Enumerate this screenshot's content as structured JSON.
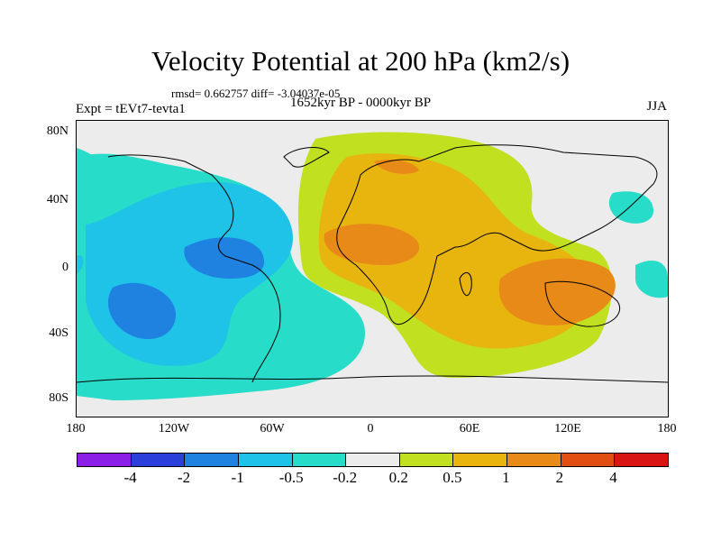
{
  "title": "Velocity Potential at 200 hPa (km2/s)",
  "stats": "rmsd= 0.662757 diff= -3.04037e-05",
  "expt": "Expt = tEVt7-tevta1",
  "period": "1652kyr BP - 0000kyr BP",
  "season": "JJA",
  "lat_labels": [
    "80N",
    "40N",
    "0",
    "40S",
    "80S"
  ],
  "lon_labels": [
    "180",
    "120W",
    "60W",
    "0",
    "60E",
    "120E",
    "180"
  ],
  "colorbar": {
    "colors": [
      "#8b1fe6",
      "#2a3fd9",
      "#1f82e0",
      "#1fc3e8",
      "#27dcc8",
      "#ececec",
      "#c0e020",
      "#e8b40e",
      "#e88a18",
      "#e24d12",
      "#d81414"
    ],
    "labels": [
      "-4",
      "-2",
      "-1",
      "-0.5",
      "-0.2",
      "0.2",
      "0.5",
      "1",
      "2",
      "4"
    ]
  }
}
